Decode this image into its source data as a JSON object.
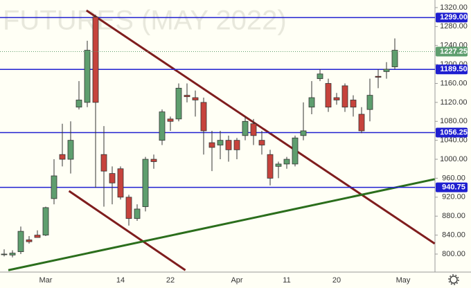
{
  "chart_data": {
    "type": "candlestick",
    "watermark": "FUTURES (MAY 2022)",
    "categories": [
      null,
      null,
      null,
      null,
      null,
      "Mar",
      null,
      null,
      null,
      null,
      null,
      null,
      null,
      null,
      "14",
      null,
      null,
      null,
      null,
      null,
      "22",
      null,
      null,
      null,
      null,
      null,
      null,
      null,
      "Apr",
      null,
      null,
      null,
      null,
      null,
      "11",
      null,
      null,
      null,
      null,
      null,
      "20",
      null,
      null,
      null,
      null,
      null,
      null,
      null,
      "May"
    ],
    "open": [
      800,
      798,
      805,
      830,
      840,
      840,
      917,
      1010,
      1000,
      1110,
      1120,
      1300,
      1010,
      970,
      980,
      920,
      875,
      900,
      1000,
      1040,
      1085,
      1085,
      1135,
      1130,
      1120,
      1035,
      1030,
      1040,
      1040,
      1050,
      1075,
      1040,
      1010,
      985,
      990,
      990,
      1050,
      1110,
      1170,
      1160,
      1130,
      1155,
      1125,
      1095,
      1105,
      1175,
      1185,
      1195,
      null
    ],
    "high": [
      810,
      808,
      858,
      838,
      850,
      900,
      1000,
      1075,
      1080,
      1165,
      1250,
      1305,
      1070,
      985,
      985,
      925,
      905,
      1005,
      1010,
      1105,
      1090,
      1160,
      1160,
      1145,
      1130,
      1060,
      1060,
      1050,
      1045,
      1090,
      1085,
      1060,
      1020,
      995,
      1005,
      1050,
      1120,
      1165,
      1190,
      1170,
      1140,
      1160,
      1135,
      1110,
      1170,
      1190,
      1205,
      1255,
      null
    ],
    "low": [
      795,
      793,
      800,
      822,
      835,
      838,
      905,
      985,
      970,
      1105,
      1110,
      940,
      900,
      905,
      915,
      860,
      870,
      890,
      980,
      1030,
      1060,
      1080,
      1120,
      1090,
      1010,
      975,
      1000,
      995,
      1000,
      1040,
      1030,
      1010,
      945,
      960,
      980,
      985,
      1040,
      1095,
      1165,
      1100,
      1115,
      1100,
      1090,
      1055,
      1080,
      1150,
      1170,
      1190,
      null
    ],
    "close": [
      800,
      802,
      848,
      826,
      835,
      898,
      965,
      1000,
      1040,
      1125,
      1230,
      1120,
      975,
      950,
      920,
      875,
      895,
      1000,
      995,
      1100,
      1080,
      1150,
      1132,
      1125,
      1060,
      1025,
      1040,
      1020,
      1020,
      1080,
      1050,
      1030,
      960,
      990,
      1000,
      1045,
      1060,
      1130,
      1180,
      1110,
      1125,
      1110,
      1110,
      1060,
      1135,
      1173,
      1190,
      1230,
      null
    ],
    "up_color": "#5e9e6e",
    "down_color": "#c6433c",
    "ylim": [
      762,
      1336
    ],
    "yticks": [
      {
        "value": 800,
        "label": "800.00"
      },
      {
        "value": 840,
        "label": "840.00"
      },
      {
        "value": 880,
        "label": "880.00"
      },
      {
        "value": 920,
        "label": "920.00"
      },
      {
        "value": 960,
        "label": "960.00"
      },
      {
        "value": 1000,
        "label": "1000.00"
      },
      {
        "value": 1040,
        "label": "1040.00"
      },
      {
        "value": 1080,
        "label": "1080.00"
      },
      {
        "value": 1120,
        "label": "1120.00"
      },
      {
        "value": 1160,
        "label": "1160.00"
      },
      {
        "value": 1200,
        "label": "1200.00"
      },
      {
        "value": 1240,
        "label": "1240.00"
      },
      {
        "value": 1280,
        "label": "1280.00"
      },
      {
        "value": 1320,
        "label": "1320.00"
      }
    ],
    "levels": [
      {
        "value": 1299,
        "label": "1299.00"
      },
      {
        "value": 1189.5,
        "label": "1189.50"
      },
      {
        "value": 1056.25,
        "label": "1056.25"
      },
      {
        "value": 940.75,
        "label": "940.75"
      }
    ],
    "level_color": "#1f1fd0",
    "last_price": {
      "value": 1227.25,
      "label": "1227.25"
    },
    "last_color": "#5e9e6e",
    "trendlines": [
      {
        "color": "#7f1d1d",
        "points": [
          [
            9.9,
            1314
          ],
          [
            51.8,
            822
          ]
        ]
      },
      {
        "color": "#7f1d1d",
        "points": [
          [
            7.8,
            933
          ],
          [
            21.8,
            766
          ]
        ]
      },
      {
        "color": "#2b6e1c",
        "points": [
          [
            0.5,
            766
          ],
          [
            51.8,
            958
          ]
        ]
      }
    ]
  }
}
